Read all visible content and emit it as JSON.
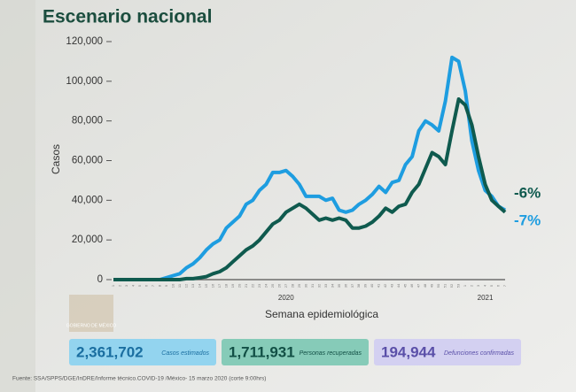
{
  "chart_data": {
    "type": "line",
    "title": "Escenario nacional",
    "ylabel": "Casos",
    "xlabel": "Semana epidemiológica",
    "years": [
      {
        "label": "2020",
        "at": 26
      },
      {
        "label": "2021",
        "at": 56
      }
    ],
    "categories": [
      "1",
      "2",
      "3",
      "4",
      "5",
      "6",
      "7",
      "8",
      "9",
      "10",
      "11",
      "12",
      "13",
      "14",
      "15",
      "16",
      "17",
      "18",
      "19",
      "20",
      "21",
      "22",
      "23",
      "24",
      "25",
      "26",
      "27",
      "28",
      "29",
      "30",
      "31",
      "32",
      "33",
      "34",
      "35",
      "36",
      "37",
      "38",
      "39",
      "40",
      "41",
      "42",
      "43",
      "44",
      "45",
      "46",
      "47",
      "48",
      "49",
      "50",
      "51",
      "52",
      "53",
      "1",
      "2",
      "3",
      "4",
      "5",
      "6",
      "7"
    ],
    "series": [
      {
        "name": "Casos estimados",
        "color": "#1e9de0",
        "values": [
          0,
          0,
          0,
          0,
          0,
          0,
          0,
          0,
          1000,
          2000,
          3000,
          6000,
          8000,
          11000,
          15000,
          18000,
          20000,
          26000,
          29000,
          32000,
          38000,
          40000,
          45000,
          48000,
          54000,
          54000,
          55000,
          52000,
          48000,
          42000,
          42000,
          42000,
          40000,
          41000,
          35000,
          34000,
          35000,
          38000,
          40000,
          43000,
          47000,
          44000,
          49000,
          50000,
          58000,
          62000,
          75000,
          80000,
          78000,
          75000,
          90000,
          112000,
          110000,
          95000,
          70000,
          55000,
          45000,
          42000,
          37000,
          35000
        ]
      },
      {
        "name": "Personas recuperadas",
        "color": "#0f5a4e",
        "values": [
          0,
          0,
          0,
          0,
          0,
          0,
          0,
          0,
          0,
          0,
          0,
          500,
          500,
          1000,
          1500,
          3000,
          4000,
          6000,
          9000,
          12000,
          15000,
          17000,
          20000,
          24000,
          28000,
          30000,
          34000,
          36000,
          38000,
          36000,
          33000,
          30000,
          31000,
          30000,
          31000,
          30000,
          26000,
          26000,
          27000,
          29000,
          32000,
          36000,
          34000,
          37000,
          38000,
          44000,
          48000,
          56000,
          64000,
          62000,
          58000,
          75000,
          91000,
          88000,
          78000,
          62000,
          48000,
          40000,
          37000,
          34000
        ]
      }
    ],
    "annotations": [
      "-6%",
      "-7%"
    ],
    "ylim": [
      0,
      120000
    ],
    "yticks": [
      0,
      {
        "value": 20000,
        "label": "20,000"
      },
      {
        "value": 40000,
        "label": "40,000"
      },
      {
        "value": 60000,
        "label": "60,000"
      },
      {
        "value": 80000,
        "label": "80,000"
      },
      {
        "value": 100000,
        "label": "100,000"
      },
      {
        "value": 120000,
        "label": "120,000"
      }
    ]
  },
  "summary": [
    {
      "value": "2,361,702",
      "label": "Casos estimados"
    },
    {
      "value": "1,711,931",
      "label": "Personas recuperadas"
    },
    {
      "value": "194,944",
      "label": "Defunciones confirmadas"
    }
  ],
  "logo": "GOBIERNO DE MÉXICO",
  "source": "Fuente: SSA/SPPS/DGE/InDRE/Informe técnico.COVID-19 /México- 15 marzo 2020 (corte 9:00hrs)"
}
